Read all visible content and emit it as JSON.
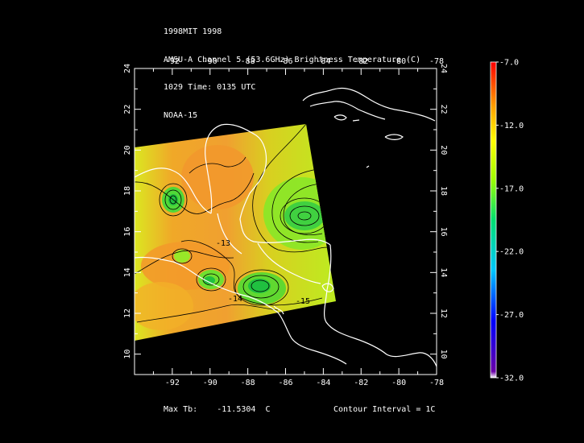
{
  "header": {
    "line1": "1998MIT 1998",
    "line2": "AMSU-A Channel 5 (53.6GHz) Brightness Temperature (C)",
    "line3": "1029 Time: 0135 UTC",
    "line4": "NOAA-15"
  },
  "map": {
    "lon_range": [
      -94,
      -78
    ],
    "lat_range": [
      9,
      24
    ],
    "lon_ticks": [
      "-92",
      "-90",
      "-88",
      "-86",
      "-84",
      "-82",
      "-80",
      "-78"
    ],
    "lat_ticks": [
      "10",
      "12",
      "14",
      "16",
      "18",
      "20",
      "22",
      "24"
    ],
    "contour_labels": [
      "-13",
      "-14",
      "-15"
    ],
    "contour_interval_c": 1,
    "colors": {
      "background": "#000000",
      "frame": "#ffffff",
      "coastline": "#ffffff",
      "contour": "#000000"
    }
  },
  "colorbar": {
    "ticks": [
      "-7.0",
      "-12.0",
      "-17.0",
      "-22.0",
      "-27.0",
      "-32.0"
    ],
    "range": [
      -32.0,
      -7.0
    ],
    "colormap": [
      "#6a00a8",
      "#0000ff",
      "#00c8ff",
      "#00e070",
      "#a0ff00",
      "#ffff00",
      "#ffa000",
      "#ff0000"
    ]
  },
  "footer": {
    "max_label": "Max Tb:",
    "max_value": "-11.5304",
    "max_unit": "C",
    "contour_interval": "Contour Interval = 1C"
  }
}
